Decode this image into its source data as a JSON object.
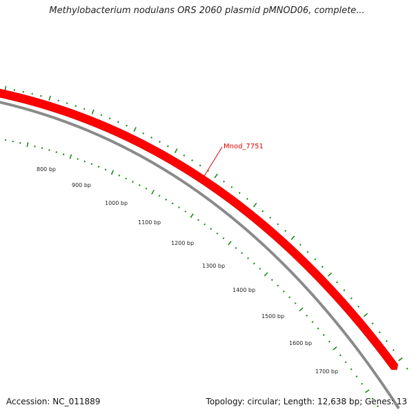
{
  "title": "Methylobacterium nodulans ORS 2060 plasmid pMNOD06, complete...",
  "gene": {
    "name": "Mnod_7751"
  },
  "ruler": {
    "labels": [
      "800 bp",
      "900 bp",
      "1000 bp",
      "1100 bp",
      "1200 bp",
      "1300 bp",
      "1400 bp",
      "1500 bp",
      "1600 bp",
      "1700 bp"
    ]
  },
  "footer": {
    "accession": "Accession: NC_011889",
    "summary": "Topology: circular; Length: 12,638 bp; Genes: 13"
  },
  "colors": {
    "gene": "#ff0000",
    "backbone": "#8a8a8a",
    "ticks": "#1a8a1a",
    "label": "#e00000"
  }
}
